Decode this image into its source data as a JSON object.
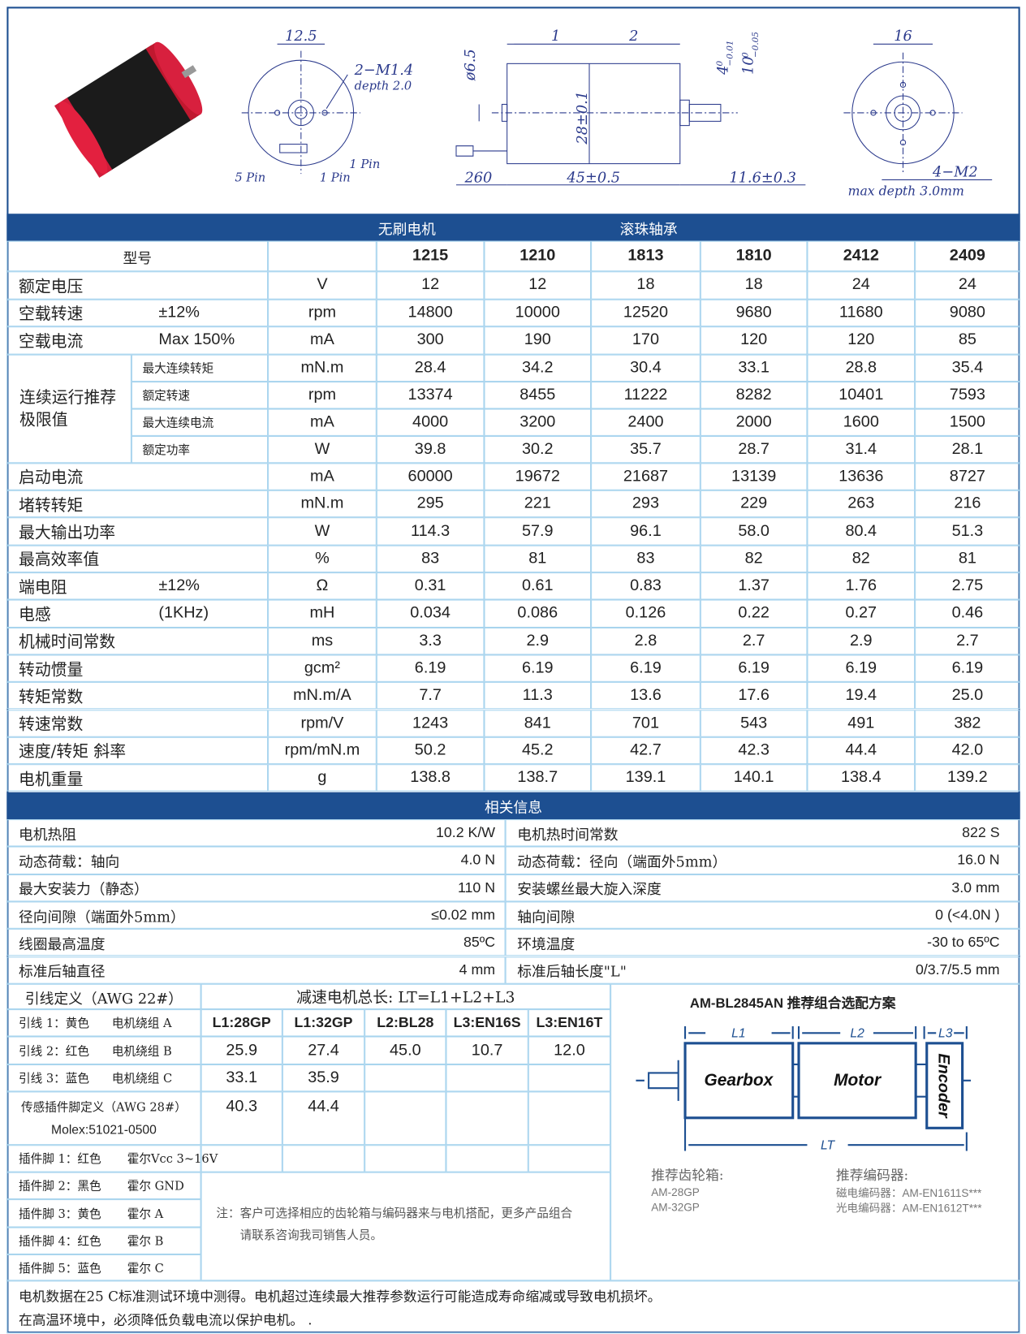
{
  "drawing": {
    "labels": [
      "12.5",
      "2−M1.4",
      "depth 2.0",
      "5 Pin",
      "1 Pin",
      "1 Pin",
      "ø6.5",
      "1",
      "2",
      "4",
      "0",
      "−0.01",
      "10",
      "0",
      "−0.05",
      "28±0.1",
      "260",
      "45±0.5",
      "11.6±0.3",
      "16",
      "4−M2",
      "max depth 3.0mm"
    ]
  },
  "spec_table": {
    "section_headers": [
      "无刷电机",
      "滚珠轴承"
    ],
    "model_label": "型号",
    "models": [
      "1215",
      "1210",
      "1813",
      "1810",
      "2412",
      "2409"
    ],
    "rows_top": [
      {
        "label": "额定电压",
        "unit": "V",
        "values": [
          "12",
          "12",
          "18",
          "18",
          "24",
          "24"
        ]
      },
      {
        "label": "空载转速",
        "note": "±12%",
        "unit": "rpm",
        "values": [
          "14800",
          "10000",
          "12520",
          "9680",
          "11680",
          "9080"
        ]
      },
      {
        "label": "空载电流",
        "note": "Max 150%",
        "unit": "mA",
        "values": [
          "300",
          "190",
          "170",
          "120",
          "120",
          "85"
        ]
      }
    ],
    "group": {
      "label": "连续运行推荐极限值",
      "rows": [
        {
          "label": "最大连续转矩",
          "unit": "mN.m",
          "values": [
            "28.4",
            "34.2",
            "30.4",
            "33.1",
            "28.8",
            "35.4"
          ]
        },
        {
          "label": "额定转速",
          "unit": "rpm",
          "values": [
            "13374",
            "8455",
            "11222",
            "8282",
            "10401",
            "7593"
          ]
        },
        {
          "label": "最大连续电流",
          "unit": "mA",
          "values": [
            "4000",
            "3200",
            "2400",
            "2000",
            "1600",
            "1500"
          ]
        },
        {
          "label": "额定功率",
          "unit": "W",
          "values": [
            "39.8",
            "30.2",
            "35.7",
            "28.7",
            "31.4",
            "28.1"
          ]
        }
      ]
    },
    "rows_bottom": [
      {
        "label": "启动电流",
        "unit": "mA",
        "values": [
          "60000",
          "19672",
          "21687",
          "13139",
          "13636",
          "8727"
        ]
      },
      {
        "label": "堵转转矩",
        "unit": "mN.m",
        "values": [
          "295",
          "221",
          "293",
          "229",
          "263",
          "216"
        ]
      },
      {
        "label": "最大输出功率",
        "unit": "W",
        "values": [
          "114.3",
          "57.9",
          "96.1",
          "58.0",
          "80.4",
          "51.3"
        ]
      },
      {
        "label": "最高效率值",
        "unit": "%",
        "values": [
          "83",
          "81",
          "83",
          "82",
          "82",
          "81"
        ]
      },
      {
        "label": "端电阻",
        "note": "±12%",
        "unit": "Ω",
        "values": [
          "0.31",
          "0.61",
          "0.83",
          "1.37",
          "1.76",
          "2.75"
        ]
      },
      {
        "label": "电感",
        "note": "(1KHz)",
        "unit": "mH",
        "values": [
          "0.034",
          "0.086",
          "0.126",
          "0.22",
          "0.27",
          "0.46"
        ]
      },
      {
        "label": "机械时间常数",
        "unit": "ms",
        "values": [
          "3.3",
          "2.9",
          "2.8",
          "2.7",
          "2.9",
          "2.7"
        ]
      },
      {
        "label": "转动惯量",
        "unit": "gcm²",
        "values": [
          "6.19",
          "6.19",
          "6.19",
          "6.19",
          "6.19",
          "6.19"
        ]
      },
      {
        "label": "转矩常数",
        "unit": "mN.m/A",
        "values": [
          "7.7",
          "11.3",
          "13.6",
          "17.6",
          "19.4",
          "25.0"
        ]
      },
      {
        "label": "转速常数",
        "unit": "rpm/V",
        "values": [
          "1243",
          "841",
          "701",
          "543",
          "491",
          "382"
        ]
      },
      {
        "label": "速度/转矩 斜率",
        "unit": "rpm/mN.m",
        "values": [
          "50.2",
          "45.2",
          "42.7",
          "42.3",
          "44.4",
          "42.0"
        ]
      },
      {
        "label": "电机重量",
        "unit": "g",
        "values": [
          "138.8",
          "138.7",
          "139.1",
          "140.1",
          "138.4",
          "139.2"
        ]
      }
    ]
  },
  "related": {
    "title": "相关信息",
    "rows": [
      [
        "电机热阻",
        "10.2 K/W",
        "电机热时间常数",
        "822 S"
      ],
      [
        "动态荷载：轴向",
        "4.0 N",
        "动态荷载：径向（端面外5mm）",
        "16.0  N"
      ],
      [
        "最大安装力（静态）",
        "110 N",
        "安装螺丝最大旋入深度",
        "3.0 mm"
      ],
      [
        "径向间隙（端面外5mm）",
        "≤0.02 mm",
        "轴向间隙",
        "0 (<4.0N )"
      ],
      [
        "线圈最高温度",
        "85ºC",
        "环境温度",
        "-30 to 65ºC"
      ],
      [
        "标准后轴直径",
        "4 mm",
        "标准后轴长度\"L\"",
        "0/3.7/5.5 mm"
      ]
    ]
  },
  "leads": {
    "title": "引线定义（AWG 22#）",
    "rows": [
      [
        "引线 1：黄色",
        "电机绕组 A"
      ],
      [
        "引线 2：红色",
        "电机绕组 B"
      ],
      [
        "引线 3：蓝色",
        "电机绕组 C"
      ]
    ],
    "sensor_title": "传感插件脚定义（AWG 28#）",
    "sensor_connector": "Molex:51021-0500",
    "pins": [
      [
        "插件脚 1：红色",
        "霍尔Vcc 3~16V"
      ],
      [
        "插件脚 2：黑色",
        "霍尔 GND"
      ],
      [
        "插件脚 3：黄色",
        "霍尔 A"
      ],
      [
        "插件脚 4：红色",
        "霍尔 B"
      ],
      [
        "插件脚 5：蓝色",
        "霍尔 C"
      ]
    ]
  },
  "lengths": {
    "title": "减速电机总长: LT=L1+L2+L3",
    "headers": [
      "L1:28GP",
      "L1:32GP",
      "L2:BL28",
      "L3:EN16S",
      "L3:EN16T"
    ],
    "rows": [
      [
        "25.9",
        "27.4",
        "45.0",
        "10.7",
        "12.0"
      ],
      [
        "33.1",
        "35.9"
      ],
      [
        "40.3",
        "44.4"
      ]
    ],
    "note": [
      "注：客户可选择相应的齿轮箱与编码器来与电机搭配，更多产品组合",
      "请联系咨询我司销售人员。"
    ]
  },
  "combo": {
    "title": "AM-BL2845AN 推荐组合选配方案",
    "labels": [
      "L1",
      "L2",
      "L3",
      "LT",
      "Gearbox",
      "Motor",
      "Encoder"
    ],
    "gearbox_title": "推荐齿轮箱:",
    "gearboxes": [
      "AM-28GP",
      "AM-32GP"
    ],
    "encoder_title": "推荐编码器:",
    "encoders": [
      "磁电编码器：AM-EN1611S***",
      "光电编码器：AM-EN1612T***"
    ]
  },
  "footer": [
    "电机数据在25 C标准测试环境中测得。电机超过连续最大推荐参数运行可能造成寿命缩减或导致电机损坏。",
    "在高温环境中，必须降低负载电流以保护电机。 ."
  ]
}
